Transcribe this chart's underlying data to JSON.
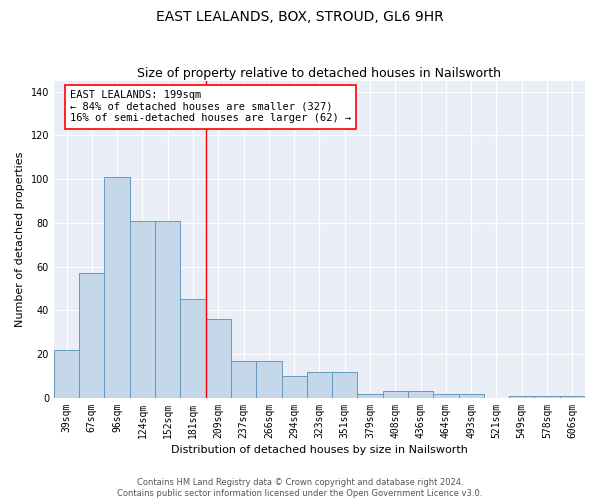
{
  "title": "EAST LEALANDS, BOX, STROUD, GL6 9HR",
  "subtitle": "Size of property relative to detached houses in Nailsworth",
  "xlabel": "Distribution of detached houses by size in Nailsworth",
  "ylabel": "Number of detached properties",
  "categories": [
    "39sqm",
    "67sqm",
    "96sqm",
    "124sqm",
    "152sqm",
    "181sqm",
    "209sqm",
    "237sqm",
    "266sqm",
    "294sqm",
    "323sqm",
    "351sqm",
    "379sqm",
    "408sqm",
    "436sqm",
    "464sqm",
    "493sqm",
    "521sqm",
    "549sqm",
    "578sqm",
    "606sqm"
  ],
  "values": [
    22,
    57,
    101,
    81,
    81,
    45,
    36,
    17,
    17,
    10,
    12,
    12,
    2,
    3,
    3,
    2,
    2,
    0,
    1,
    1,
    1
  ],
  "bar_color": "#c5d8ea",
  "bar_edge_color": "#6699bb",
  "red_line_index": 6,
  "annotation_line1": "EAST LEALANDS: 199sqm",
  "annotation_line2": "← 84% of detached houses are smaller (327)",
  "annotation_line3": "16% of semi-detached houses are larger (62) →",
  "ylim": [
    0,
    145
  ],
  "yticks": [
    0,
    20,
    40,
    60,
    80,
    100,
    120,
    140
  ],
  "background_color": "#eaeff7",
  "grid_color": "#ffffff",
  "footer_text": "Contains HM Land Registry data © Crown copyright and database right 2024.\nContains public sector information licensed under the Open Government Licence v3.0.",
  "title_fontsize": 10,
  "subtitle_fontsize": 9,
  "xlabel_fontsize": 8,
  "ylabel_fontsize": 8,
  "tick_fontsize": 7,
  "annotation_fontsize": 7.5,
  "footer_fontsize": 6
}
